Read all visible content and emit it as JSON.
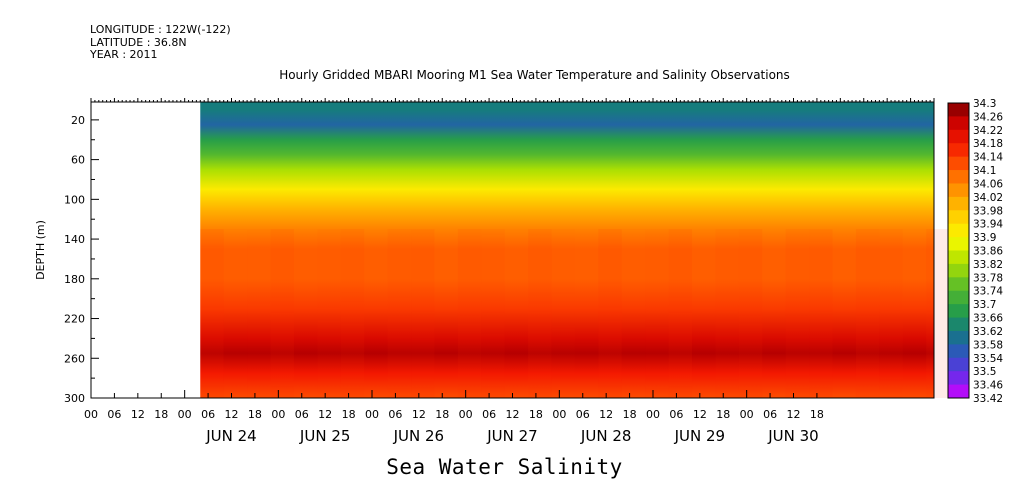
{
  "meta": {
    "longitude": "LONGITUDE : 122W(-122)",
    "latitude": "LATITUDE : 36.8N",
    "year": "YEAR : 2011"
  },
  "plot_title": "Hourly Gridded MBARI Mooring M1 Sea Water Temperature and Salinity Observations",
  "main_title": "Sea Water Salinity",
  "chart_data": {
    "type": "heatmap",
    "title": "Hourly Gridded MBARI Mooring M1 Sea Water Temperature and Salinity Observations",
    "xlabel": "",
    "ylabel": "DEPTH (m)",
    "y_ticks": [
      20,
      60,
      100,
      140,
      180,
      220,
      260,
      300
    ],
    "ylim": [
      300,
      2
    ],
    "x_hour_ticks": [
      "00",
      "06",
      "12",
      "18",
      "00",
      "06",
      "12",
      "18",
      "00",
      "06",
      "12",
      "18",
      "00",
      "06",
      "12",
      "18",
      "00",
      "06",
      "12",
      "18",
      "00",
      "06",
      "12",
      "18",
      "00",
      "06",
      "12",
      "18",
      "00",
      "06",
      "12",
      "18"
    ],
    "x_date_labels": [
      "JUN 24",
      "JUN 25",
      "JUN 26",
      "JUN 27",
      "JUN 28",
      "JUN 29",
      "JUN 30"
    ],
    "x_range_hours": [
      -24,
      192
    ],
    "data_start_hour": 4,
    "colorbar": {
      "min": 33.42,
      "max": 34.3,
      "step": 0.04,
      "labels": [
        "34.3",
        "34.26",
        "34.22",
        "34.18",
        "34.14",
        "34.1",
        "34.06",
        "34.02",
        "33.98",
        "33.94",
        "33.9",
        "33.86",
        "33.82",
        "33.78",
        "33.74",
        "33.7",
        "33.66",
        "33.62",
        "33.58",
        "33.54",
        "33.5",
        "33.46",
        "33.42"
      ]
    },
    "depth_profile": [
      {
        "depth": 10,
        "value": 33.62
      },
      {
        "depth": 25,
        "value": 33.58
      },
      {
        "depth": 40,
        "value": 33.68
      },
      {
        "depth": 55,
        "value": 33.74
      },
      {
        "depth": 70,
        "value": 33.82
      },
      {
        "depth": 90,
        "value": 33.92
      },
      {
        "depth": 110,
        "value": 34.0
      },
      {
        "depth": 130,
        "value": 34.06
      },
      {
        "depth": 150,
        "value": 34.1
      },
      {
        "depth": 180,
        "value": 34.1
      },
      {
        "depth": 210,
        "value": 34.14
      },
      {
        "depth": 240,
        "value": 34.22
      },
      {
        "depth": 255,
        "value": 34.26
      },
      {
        "depth": 275,
        "value": 34.18
      },
      {
        "depth": 300,
        "value": 34.12
      }
    ]
  }
}
